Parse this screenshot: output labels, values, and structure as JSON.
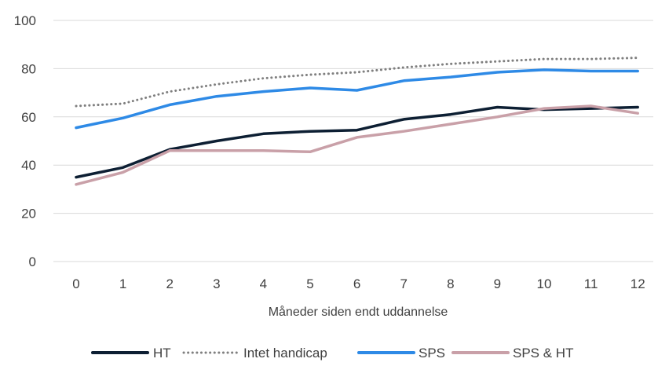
{
  "chart_data": {
    "type": "line",
    "title": "",
    "xlabel": "Måneder siden endt uddannelse",
    "ylabel": "",
    "x": [
      0,
      1,
      2,
      3,
      4,
      5,
      6,
      7,
      8,
      9,
      10,
      11,
      12
    ],
    "x_tick_labels": [
      "0",
      "1",
      "2",
      "3",
      "4",
      "5",
      "6",
      "7",
      "8",
      "9",
      "10",
      "11",
      "12"
    ],
    "ylim": [
      0,
      100
    ],
    "y_ticks": [
      0,
      20,
      40,
      60,
      80,
      100
    ],
    "y_tick_labels": [
      "0",
      "20",
      "40",
      "60",
      "80",
      "100"
    ],
    "grid": "horizontal",
    "legend_position": "bottom",
    "series": [
      {
        "name": "HT",
        "color": "#0d1f33",
        "style": "solid",
        "values": [
          35,
          39,
          46.5,
          50,
          53,
          54,
          54.5,
          59,
          61,
          64,
          63,
          63.5,
          64
        ]
      },
      {
        "name": "Intet handicap",
        "color": "#7f7f7f",
        "style": "dotted",
        "values": [
          64.5,
          65.5,
          70.5,
          73.5,
          76,
          77.5,
          78.5,
          80.5,
          82,
          83,
          84,
          84,
          84.5
        ]
      },
      {
        "name": "SPS",
        "color": "#2e8ae6",
        "style": "solid",
        "values": [
          55.5,
          59.5,
          65,
          68.5,
          70.5,
          72,
          71,
          75,
          76.5,
          78.5,
          79.5,
          79,
          79
        ]
      },
      {
        "name": "SPS & HT",
        "color": "#c9a0a8",
        "style": "solid",
        "values": [
          32,
          37,
          46,
          46,
          46,
          45.5,
          51.5,
          54,
          57,
          60,
          63.5,
          64.5,
          61.5
        ]
      }
    ]
  }
}
